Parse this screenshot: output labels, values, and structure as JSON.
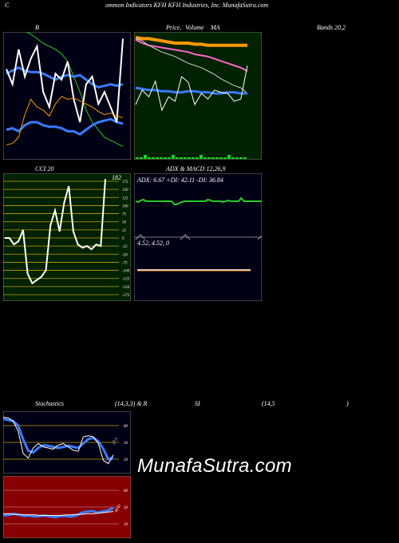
{
  "header": {
    "c": "C",
    "main": "ommon Indicators KFH KFH Industries, Inc. MunafaSutra.com",
    "price_label": "Price,",
    "volume_label": "Volume",
    "ma_label": "MA",
    "bands_label": "Bands 20,2",
    "b_label": "B"
  },
  "cci": {
    "title": "CCI 20",
    "last_value": "182",
    "ticks": [
      "175",
      "150",
      "125",
      "100",
      "75",
      "50",
      "25",
      "0",
      "-25",
      "-50",
      "-75",
      "-100",
      "-125",
      "-150",
      "-175"
    ]
  },
  "adx": {
    "title": "ADX  & MACD 12,26,9",
    "values_text": "ADX: 6.67  +DI: 42.11  -DI: 36.84",
    "macd_text": "4.52,  4.52,  0"
  },
  "stoch": {
    "title_left": "Stochastics",
    "title_mid": "(14,3,3) & R",
    "title_si": "SI",
    "title_right": "(14,5",
    "close_paren": ")",
    "ticks": [
      "80",
      "50",
      "20"
    ],
    "label": "27.5"
  },
  "rsi": {
    "ticks": [
      "80",
      "50",
      "20"
    ],
    "label": "48.61"
  },
  "watermark": "MunafaSutra.com",
  "colors": {
    "panel_bg": "#000014",
    "price_bg": "#002200",
    "cci_bg": "#002200",
    "rsi_bg": "#880000",
    "blue": "#3a7bff",
    "green": "#22cc22",
    "orange": "#ff9900"
  },
  "chart_data": [
    {
      "type": "line",
      "title": "Bands 20,2",
      "series": [
        {
          "values": [
            95,
            96,
            95,
            90,
            88,
            85,
            82,
            80,
            78,
            75,
            70,
            60,
            50,
            38,
            30,
            25,
            20,
            18,
            16,
            14
          ]
        },
        {
          "values": [
            62,
            64,
            66,
            64,
            63,
            63,
            62,
            60,
            58,
            60,
            61,
            60,
            61,
            58,
            55,
            53,
            54,
            55,
            54,
            55
          ]
        },
        {
          "values": [
            25,
            26,
            24,
            28,
            30,
            30,
            28,
            27,
            27,
            26,
            24,
            24,
            22,
            25,
            28,
            30,
            31,
            32,
            30,
            29
          ]
        },
        {
          "values": [
            65,
            55,
            78,
            60,
            72,
            80,
            50,
            40,
            62,
            58,
            70,
            45,
            30,
            55,
            60,
            42,
            50,
            40,
            30,
            85
          ]
        },
        {
          "values": [
            15,
            16,
            20,
            35,
            45,
            40,
            38,
            34,
            42,
            47,
            45,
            46,
            44,
            42,
            40,
            37,
            35,
            36,
            34,
            33
          ]
        }
      ]
    },
    {
      "type": "line",
      "title": "Price, Volume MA",
      "series": [
        {
          "values": [
            95,
            94,
            94,
            93,
            92,
            91,
            90,
            90,
            90,
            89,
            89,
            88,
            88,
            88,
            88,
            88,
            88,
            88
          ]
        },
        {
          "values": [
            93,
            90,
            88,
            87,
            86,
            85,
            84,
            83,
            82,
            80,
            79,
            78,
            76,
            74,
            72,
            70,
            68,
            65
          ]
        },
        {
          "values": [
            94,
            92,
            88,
            85,
            82,
            80,
            78,
            75,
            72,
            70,
            68,
            65,
            62,
            58,
            55,
            52,
            50,
            45
          ]
        },
        {
          "values": [
            50,
            49,
            48,
            48,
            47,
            47,
            46,
            46,
            47,
            47,
            46,
            46,
            45,
            45,
            46,
            46,
            45,
            45
          ]
        },
        {
          "values": [
            35,
            48,
            42,
            56,
            30,
            42,
            38,
            60,
            55,
            35,
            45,
            40,
            48,
            46,
            45,
            38,
            40,
            70
          ]
        }
      ]
    },
    {
      "type": "line",
      "title": "CCI 20",
      "ylim": [
        -175,
        175
      ],
      "values": [
        0,
        0,
        -20,
        -10,
        25,
        -110,
        -140,
        -130,
        -120,
        -100,
        40,
        85,
        20,
        110,
        160,
        20,
        -20,
        -30,
        -25,
        -35,
        -20,
        -25,
        182
      ]
    },
    {
      "type": "line",
      "title": "ADX & MACD 12,26,9",
      "series": [
        {
          "name": "ADX",
          "values": [
            6.67
          ]
        },
        {
          "name": "+DI",
          "values": [
            42.11
          ]
        },
        {
          "name": "-DI",
          "values": [
            36.84
          ]
        },
        {
          "name": "MACD",
          "values": [
            4.52
          ]
        }
      ]
    },
    {
      "type": "line",
      "title": "Stochastics (14,3,3)",
      "ylim": [
        0,
        100
      ],
      "series": [
        {
          "values": [
            95,
            94,
            88,
            70,
            30,
            22,
            40,
            48,
            42,
            40,
            38,
            45,
            48,
            42,
            36,
            34,
            60,
            62,
            60,
            48,
            18,
            12,
            27.5
          ]
        },
        {
          "values": [
            92,
            90,
            88,
            80,
            55,
            35,
            32,
            40,
            45,
            44,
            42,
            40,
            42,
            44,
            42,
            40,
            48,
            56,
            58,
            52,
            38,
            20,
            22
          ]
        }
      ]
    },
    {
      "type": "line",
      "title": "RSI (14)",
      "ylim": [
        0,
        100
      ],
      "series": [
        {
          "values": [
            35,
            36,
            38,
            36,
            34,
            35,
            33,
            34,
            35,
            33,
            32,
            34,
            34,
            33,
            35,
            40,
            42,
            43,
            40,
            42,
            44,
            48.61
          ]
        },
        {
          "values": [
            38,
            38,
            37,
            37,
            36,
            36,
            36,
            35,
            35,
            35,
            35,
            35,
            36,
            36,
            37,
            37,
            38,
            38,
            39,
            40,
            41,
            42
          ]
        }
      ]
    }
  ]
}
